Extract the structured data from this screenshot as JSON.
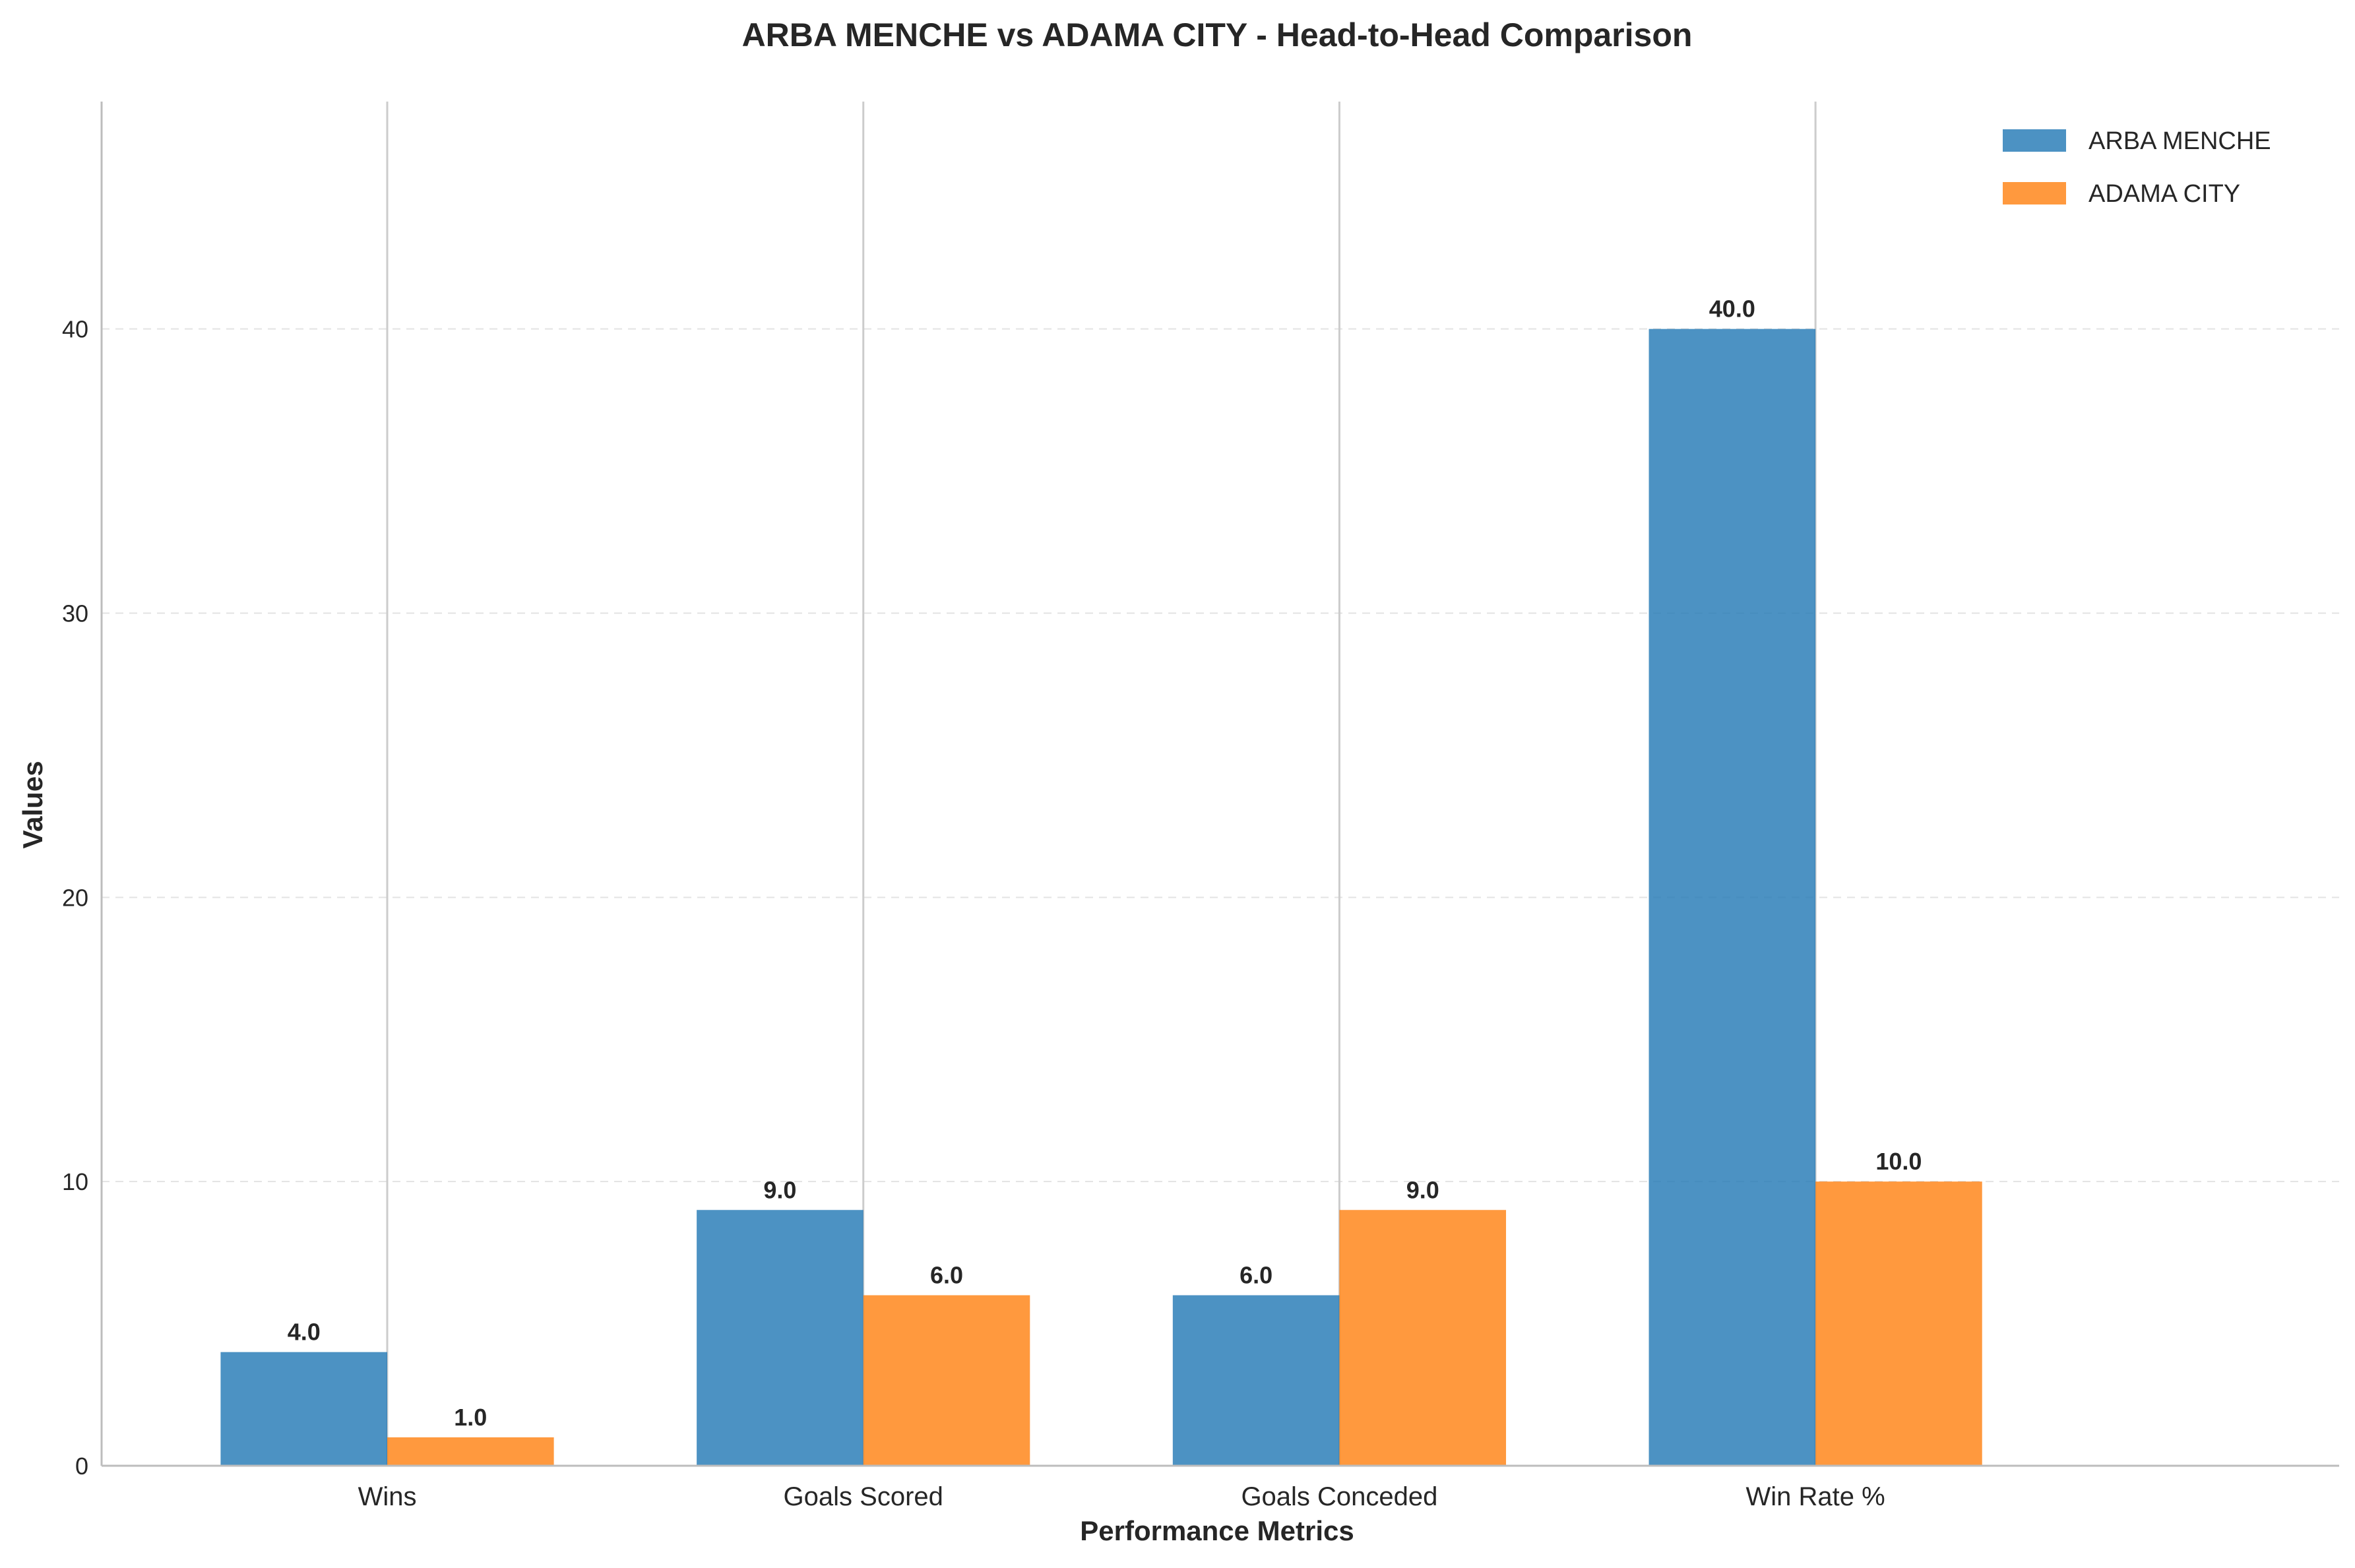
{
  "chart_data": {
    "type": "bar",
    "title": "ARBA MENCHE vs ADAMA CITY - Head-to-Head Comparison",
    "xlabel": "Performance Metrics",
    "ylabel": "Values",
    "categories": [
      "Wins",
      "Goals Scored",
      "Goals Conceded",
      "Win Rate %"
    ],
    "series": [
      {
        "name": "ARBA MENCHE",
        "color": "#1f77b4",
        "values": [
          4.0,
          9.0,
          6.0,
          40.0
        ],
        "labels": [
          "4.0",
          "9.0",
          "6.0",
          "40.0"
        ]
      },
      {
        "name": "ADAMA CITY",
        "color": "#ff7f0e",
        "values": [
          1.0,
          6.0,
          9.0,
          10.0
        ],
        "labels": [
          "1.0",
          "6.0",
          "9.0",
          "10.0"
        ]
      }
    ],
    "ylim": [
      0,
      48
    ],
    "yticks": [
      0,
      10,
      20,
      30,
      40
    ],
    "ytick_labels": [
      "0",
      "10",
      "20",
      "30",
      "40"
    ],
    "grid": "y-dashed",
    "legend_position": "top-right"
  }
}
